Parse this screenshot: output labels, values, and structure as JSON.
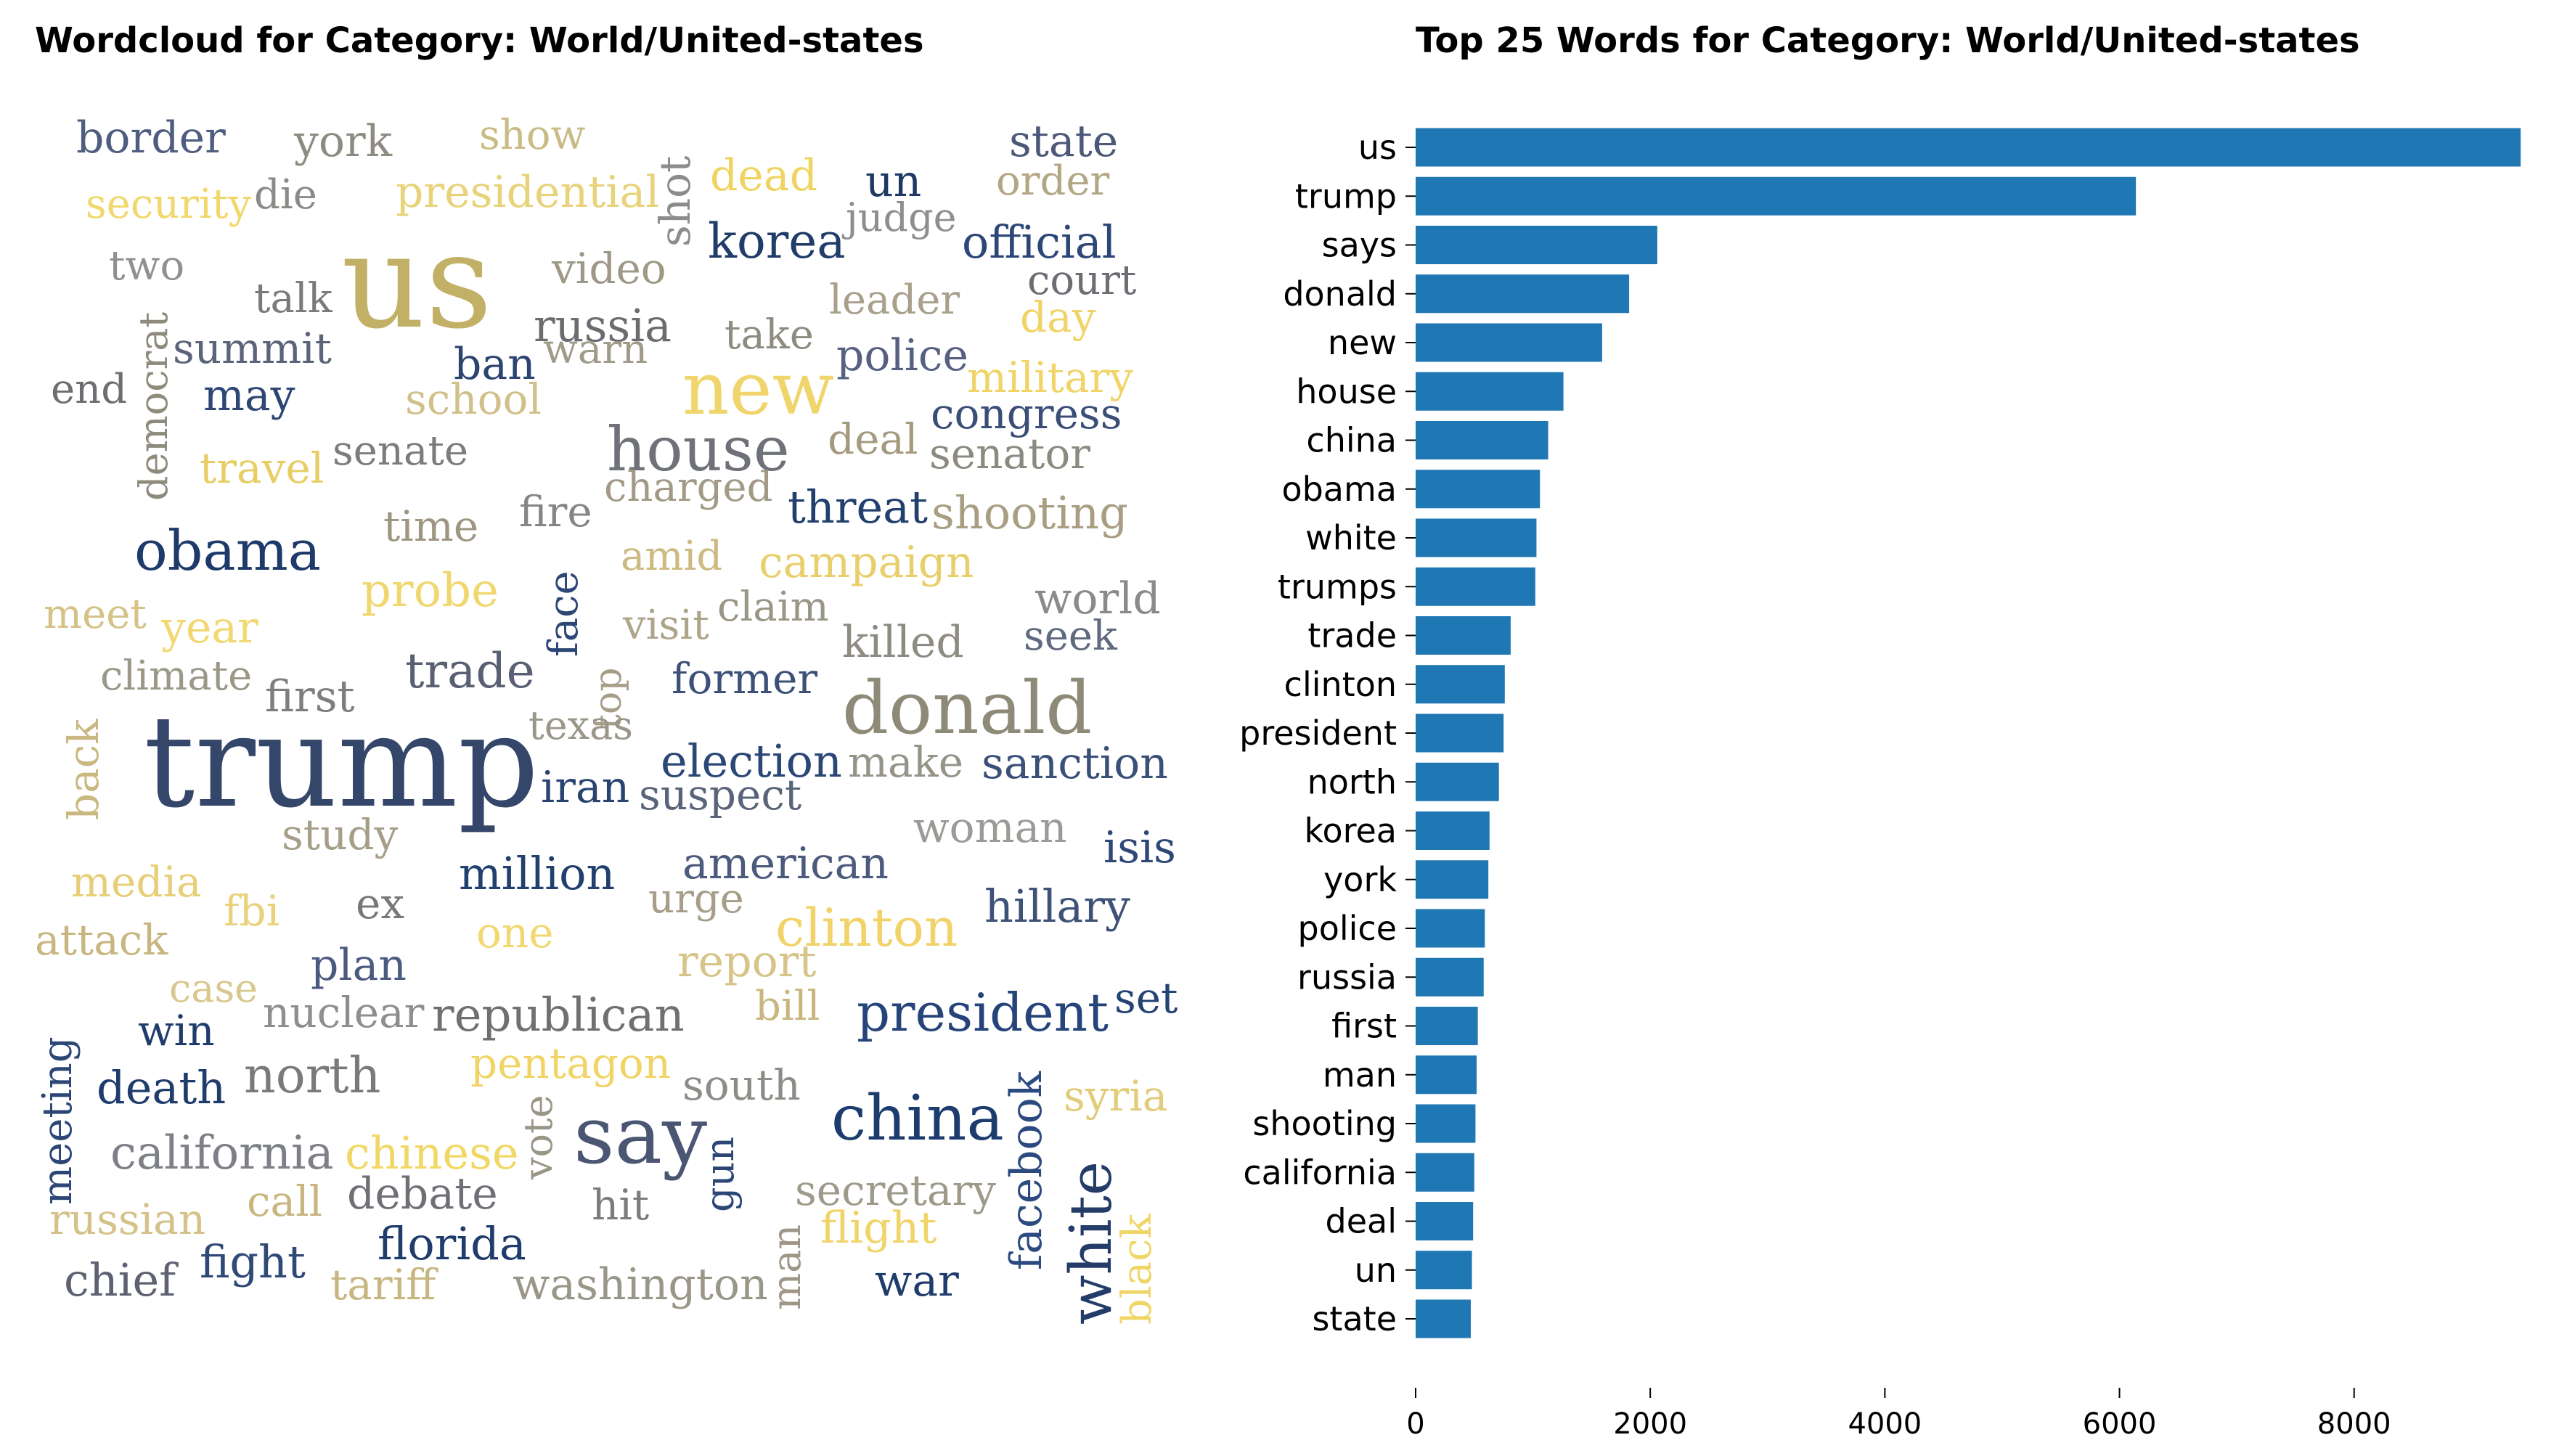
{
  "chart_data": [
    {
      "type": "wordcloud",
      "title": "Wordcloud for Category: World/United-states",
      "words": [
        {
          "text": "us",
          "color": "#c2b066"
        },
        {
          "text": "trump",
          "color": "#34466a"
        },
        {
          "text": "new",
          "color": "#f0d56c"
        },
        {
          "text": "donald",
          "color": "#8e8a78"
        },
        {
          "text": "house",
          "color": "#6f7178"
        },
        {
          "text": "obama",
          "color": "#1d3a6a"
        },
        {
          "text": "say",
          "color": "#4b5672"
        },
        {
          "text": "china",
          "color": "#1d3c6e"
        },
        {
          "text": "president",
          "color": "#26447a"
        },
        {
          "text": "trade",
          "color": "#5a6073"
        },
        {
          "text": "clinton",
          "color": "#f1d36a"
        },
        {
          "text": "korea",
          "color": "#203c68"
        },
        {
          "text": "white",
          "color": "#243c68"
        },
        {
          "text": "facebook",
          "color": "#2a4a80"
        },
        {
          "text": "border",
          "color": "#4f5d80"
        },
        {
          "text": "york",
          "color": "#8e8c82"
        },
        {
          "text": "show",
          "color": "#c9bb86"
        },
        {
          "text": "state",
          "color": "#4c5878"
        },
        {
          "text": "order",
          "color": "#b3a684"
        },
        {
          "text": "security",
          "color": "#f1d86c"
        },
        {
          "text": "die",
          "color": "#8a8a86"
        },
        {
          "text": "presidential",
          "color": "#e8d27a"
        },
        {
          "text": "shot",
          "color": "#8c8c8a"
        },
        {
          "text": "dead",
          "color": "#f0d462"
        },
        {
          "text": "un",
          "color": "#1f3964"
        },
        {
          "text": "judge",
          "color": "#8e8e8e"
        },
        {
          "text": "official",
          "color": "#2c4677"
        },
        {
          "text": "two",
          "color": "#909090"
        },
        {
          "text": "video",
          "color": "#9e9886"
        },
        {
          "text": "court",
          "color": "#6c6e74"
        },
        {
          "text": "talk",
          "color": "#7a7a7c"
        },
        {
          "text": "russia",
          "color": "#6c6c70"
        },
        {
          "text": "leader",
          "color": "#a8a08a"
        },
        {
          "text": "day",
          "color": "#f0d468"
        },
        {
          "text": "democrat",
          "color": "#8e8a7c"
        },
        {
          "text": "summit",
          "color": "#5b6478"
        },
        {
          "text": "warn",
          "color": "#a09a88"
        },
        {
          "text": "take",
          "color": "#8e8c80"
        },
        {
          "text": "police",
          "color": "#566180"
        },
        {
          "text": "military",
          "color": "#f1d468"
        },
        {
          "text": "end",
          "color": "#6e6e72"
        },
        {
          "text": "may",
          "color": "#2e4674"
        },
        {
          "text": "ban",
          "color": "#2b4470"
        },
        {
          "text": "school",
          "color": "#d2c08a"
        },
        {
          "text": "congress",
          "color": "#3a4e78"
        },
        {
          "text": "deal",
          "color": "#a49a7e"
        },
        {
          "text": "senator",
          "color": "#8c8a80"
        },
        {
          "text": "travel",
          "color": "#e7cd64"
        },
        {
          "text": "senate",
          "color": "#7c7c7e"
        },
        {
          "text": "charged",
          "color": "#a29a86"
        },
        {
          "text": "threat",
          "color": "#21406e"
        },
        {
          "text": "shooting",
          "color": "#a89e82"
        },
        {
          "text": "time",
          "color": "#9e9682"
        },
        {
          "text": "fire",
          "color": "#858586"
        },
        {
          "text": "amid",
          "color": "#ccba80"
        },
        {
          "text": "campaign",
          "color": "#e9cf6c"
        },
        {
          "text": "meet",
          "color": "#d4c288"
        },
        {
          "text": "year",
          "color": "#f1d870"
        },
        {
          "text": "probe",
          "color": "#f0d76e"
        },
        {
          "text": "face",
          "color": "#2c4676"
        },
        {
          "text": "visit",
          "color": "#ada48a"
        },
        {
          "text": "claim",
          "color": "#9a9686"
        },
        {
          "text": "world",
          "color": "#8a8a88"
        },
        {
          "text": "seek",
          "color": "#606a7e"
        },
        {
          "text": "killed",
          "color": "#8e8c82"
        },
        {
          "text": "climate",
          "color": "#9c9888"
        },
        {
          "text": "first",
          "color": "#7c7e80"
        },
        {
          "text": "top",
          "color": "#a69e88"
        },
        {
          "text": "former",
          "color": "#3c5078"
        },
        {
          "text": "back",
          "color": "#c9b880"
        },
        {
          "text": "texas",
          "color": "#9a9688"
        },
        {
          "text": "election",
          "color": "#2b4776"
        },
        {
          "text": "make",
          "color": "#969488"
        },
        {
          "text": "sanction",
          "color": "#3b5078"
        },
        {
          "text": "iran",
          "color": "#2a4472"
        },
        {
          "text": "suspect",
          "color": "#5a6478"
        },
        {
          "text": "study",
          "color": "#a69e88"
        },
        {
          "text": "woman",
          "color": "#9a9a96"
        },
        {
          "text": "isis",
          "color": "#2e4878"
        },
        {
          "text": "media",
          "color": "#e6cf78"
        },
        {
          "text": "million",
          "color": "#21406e"
        },
        {
          "text": "american",
          "color": "#4c5a7c"
        },
        {
          "text": "fbi",
          "color": "#e8d27c"
        },
        {
          "text": "ex",
          "color": "#787878"
        },
        {
          "text": "urge",
          "color": "#a69e88"
        },
        {
          "text": "hillary",
          "color": "#3e5278"
        },
        {
          "text": "attack",
          "color": "#c8b680"
        },
        {
          "text": "one",
          "color": "#f1d870"
        },
        {
          "text": "plan",
          "color": "#4c5a80"
        },
        {
          "text": "report",
          "color": "#d6c488"
        },
        {
          "text": "case",
          "color": "#d8c88e"
        },
        {
          "text": "nuclear",
          "color": "#8e8e8e"
        },
        {
          "text": "republican",
          "color": "#707072"
        },
        {
          "text": "bill",
          "color": "#c8b67e"
        },
        {
          "text": "set",
          "color": "#244274"
        },
        {
          "text": "win",
          "color": "#1f3c6c"
        },
        {
          "text": "pentagon",
          "color": "#f0d466"
        },
        {
          "text": "meeting",
          "color": "#2c4676"
        },
        {
          "text": "death",
          "color": "#1f3c6c"
        },
        {
          "text": "north",
          "color": "#7a7a7c"
        },
        {
          "text": "south",
          "color": "#8e8c86"
        },
        {
          "text": "syria",
          "color": "#e2cc7a"
        },
        {
          "text": "vote",
          "color": "#9a9686"
        },
        {
          "text": "gun",
          "color": "#2c4676"
        },
        {
          "text": "california",
          "color": "#7e8088"
        },
        {
          "text": "chinese",
          "color": "#f1d866"
        },
        {
          "text": "call",
          "color": "#c8b67e"
        },
        {
          "text": "debate",
          "color": "#6e7076"
        },
        {
          "text": "hit",
          "color": "#7c7c7e"
        },
        {
          "text": "secretary",
          "color": "#9e9a8a"
        },
        {
          "text": "russian",
          "color": "#d4c288"
        },
        {
          "text": "man",
          "color": "#9e9686"
        },
        {
          "text": "flight",
          "color": "#f0d468"
        },
        {
          "text": "black",
          "color": "#f0d668"
        },
        {
          "text": "florida",
          "color": "#1f3c6c"
        },
        {
          "text": "fight",
          "color": "#304a78"
        },
        {
          "text": "chief",
          "color": "#5e6270"
        },
        {
          "text": "tariff",
          "color": "#c8b680"
        },
        {
          "text": "washington",
          "color": "#9a9688"
        },
        {
          "text": "war",
          "color": "#1f3c6c"
        }
      ]
    },
    {
      "type": "bar",
      "orientation": "horizontal",
      "title": "Top 25 Words for Category: World/United-states",
      "xlabel": "",
      "ylabel": "",
      "xlim": [
        0,
        9450
      ],
      "xticks": [
        0,
        2000,
        4000,
        6000,
        8000
      ],
      "grid": false,
      "bar_color": "#1f77b4",
      "categories": [
        "us",
        "trump",
        "says",
        "donald",
        "new",
        "house",
        "china",
        "obama",
        "white",
        "trumps",
        "trade",
        "clinton",
        "president",
        "north",
        "korea",
        "york",
        "police",
        "russia",
        "first",
        "man",
        "shooting",
        "california",
        "deal",
        "un",
        "state"
      ],
      "values": [
        9420,
        6140,
        2060,
        1820,
        1590,
        1260,
        1130,
        1060,
        1030,
        1020,
        810,
        760,
        750,
        710,
        630,
        620,
        590,
        580,
        530,
        520,
        510,
        500,
        490,
        480,
        470
      ]
    }
  ]
}
